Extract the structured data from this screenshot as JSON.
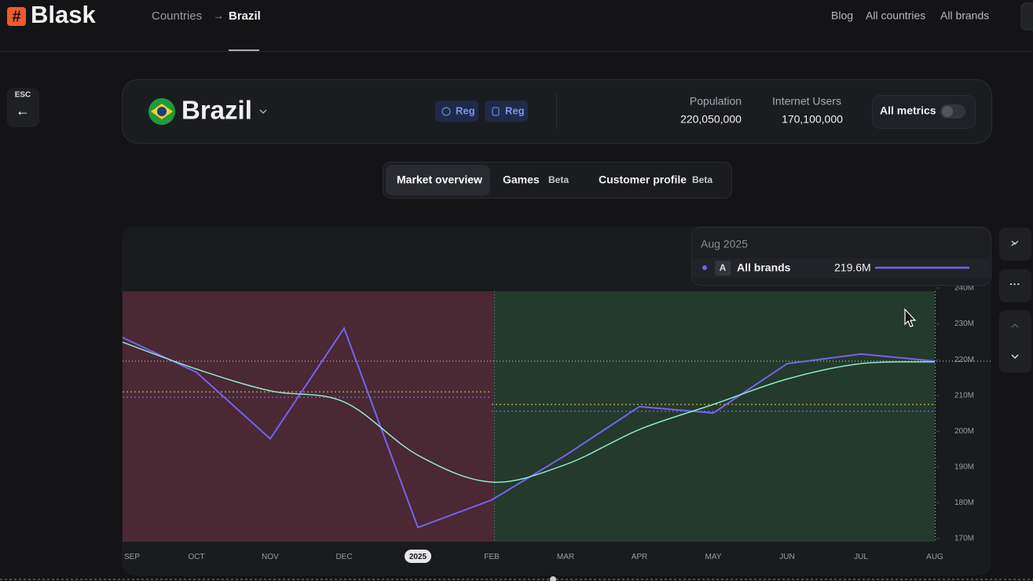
{
  "header": {
    "logo": "Blask",
    "breadcrumb": [
      "Countries",
      "Brazil"
    ],
    "nav": [
      "Blog",
      "All countries",
      "All brands"
    ]
  },
  "esc": "ESC",
  "country": {
    "name": "Brazil",
    "badges": [
      "Reg",
      "Reg"
    ],
    "stats": [
      {
        "label": "Population",
        "value": "220,050,000"
      },
      {
        "label": "Internet Users",
        "value": "170,100,000"
      }
    ],
    "toggle": "All metrics"
  },
  "tabs": [
    {
      "label": "Market overview"
    },
    {
      "label": "Games",
      "tag": "Beta"
    },
    {
      "label": "Customer profile",
      "tag": "Beta"
    }
  ],
  "chart_data": {
    "type": "line",
    "categories": [
      "SEP",
      "OCT",
      "NOV",
      "DEC",
      "2025",
      "FEB",
      "MAR",
      "APR",
      "MAY",
      "JUN",
      "JUL",
      "AUG"
    ],
    "series": [
      {
        "name": "All brands",
        "color": "#7266e8",
        "values": [
          226.2,
          216.5,
          197.9,
          228.8,
          173.1,
          180.8,
          193.3,
          206.9,
          205.1,
          218.9,
          221.6,
          219.6
        ]
      },
      {
        "color": "#8fe6cf",
        "smooth": true,
        "values": [
          224.9,
          217.4,
          211.3,
          208.2,
          193.3,
          185.8,
          190.7,
          200.5,
          207.5,
          214.6,
          218.9,
          219.4
        ]
      }
    ],
    "levels": [
      {
        "color": "#c9a84a",
        "values": [
          211,
          207.5
        ]
      },
      {
        "color": "#7266e8",
        "values": [
          209.5,
          205.6
        ]
      }
    ],
    "ylim": [
      170,
      240
    ],
    "yticks": [
      {
        "value": 170,
        "label": "170M"
      },
      {
        "value": 180,
        "label": "180M"
      },
      {
        "value": 190,
        "label": "190M"
      },
      {
        "value": 200,
        "label": "200M"
      },
      {
        "value": 210,
        "label": "210M"
      },
      {
        "value": 220,
        "label": "220M"
      },
      {
        "value": 230,
        "label": "230M"
      },
      {
        "value": 240,
        "label": "240M"
      }
    ],
    "tooltip": {
      "title": "Aug 2025",
      "badge": "A",
      "value": 219.6,
      "value_label": "219.6M"
    }
  }
}
